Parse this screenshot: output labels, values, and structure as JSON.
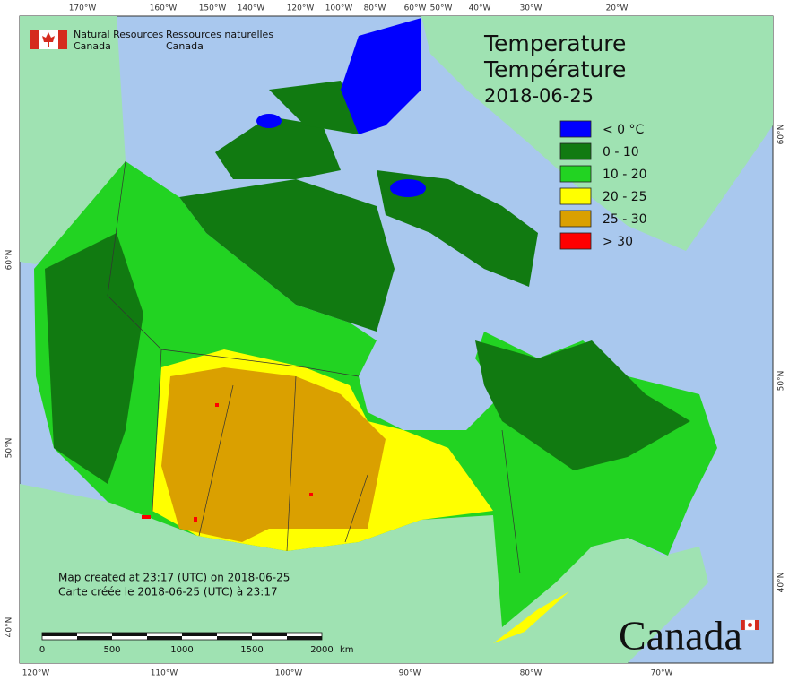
{
  "header": {
    "org_en": [
      "Natural Resources",
      "Canada"
    ],
    "org_fr": [
      "Ressources naturelles",
      "Canada"
    ]
  },
  "title": [
    "Temperature",
    "Température"
  ],
  "date": "2018-06-25",
  "legend": [
    {
      "label": "< 0 °C",
      "color": "#0000ff"
    },
    {
      "label": "0 - 10",
      "color": "#117a11"
    },
    {
      "label": "10 - 20",
      "color": "#22d322"
    },
    {
      "label": "20 - 25",
      "color": "#ffff00"
    },
    {
      "label": "25 - 30",
      "color": "#daa000"
    },
    {
      "label": "> 30",
      "color": "#ff0000"
    }
  ],
  "top_labels": [
    "170°W",
    "160°W",
    "150°W",
    "140°W",
    "120°W",
    "100°W",
    "80°W",
    "60°W",
    "50°W",
    "40°W",
    "30°W",
    "20°W"
  ],
  "bottom_labels": [
    "120°W",
    "110°W",
    "100°W",
    "90°W",
    "80°W",
    "70°W"
  ],
  "left_labels": [
    "60°N",
    "50°N",
    "40°N"
  ],
  "right_labels": [
    "60°N",
    "50°N",
    "40°N"
  ],
  "credits": [
    "Map created at 23:17 (UTC) on 2018-06-25",
    "Carte créée le 2018-06-25 (UTC) à 23:17"
  ],
  "scale": {
    "ticks": [
      0,
      500,
      1000,
      1500,
      2000
    ],
    "unit": "km"
  },
  "wordmark": "Canada"
}
